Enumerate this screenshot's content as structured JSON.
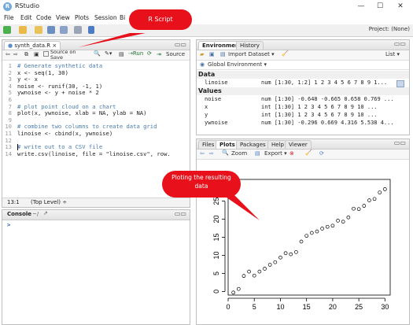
{
  "window": {
    "title": "RStudio",
    "minimize": "—",
    "maximize": "☐",
    "close": "✕"
  },
  "menu": [
    "File",
    "Edit",
    "Code",
    "View",
    "Plots",
    "Session",
    "Bi"
  ],
  "toolbar": {
    "project": "Project: (None)"
  },
  "editor": {
    "tab_label": "synth_data.R",
    "source_on_save": "Source on Save",
    "source_button": "Source",
    "lines": [
      {
        "n": "1",
        "text": "# Generate synthetic data",
        "kind": "comment"
      },
      {
        "n": "2",
        "text": "x <- seq(1, 30)",
        "kind": "code"
      },
      {
        "n": "3",
        "text": "y <- x",
        "kind": "code"
      },
      {
        "n": "4",
        "text": "noise <- runif(30, -1, 1)",
        "kind": "code"
      },
      {
        "n": "5",
        "text": "ywnoise <- y + noise * 2",
        "kind": "code"
      },
      {
        "n": "6",
        "text": "",
        "kind": "code"
      },
      {
        "n": "7",
        "text": "# plot point cloud on a chart",
        "kind": "comment"
      },
      {
        "n": "8",
        "text": "plot(x, ywnoise, xlab = NA, ylab = NA)",
        "kind": "code"
      },
      {
        "n": "9",
        "text": "",
        "kind": "code"
      },
      {
        "n": "10",
        "text": "# combine two columns to create data grid",
        "kind": "comment"
      },
      {
        "n": "11",
        "text": "linoise <- cbind(x, ywnoise)",
        "kind": "code"
      },
      {
        "n": "12",
        "text": "",
        "kind": "code"
      },
      {
        "n": "13",
        "text": "# write out to a CSV file",
        "kind": "comment"
      },
      {
        "n": "14",
        "text": "write.csv(linoise, file = \"linoise.csv\", row.",
        "kind": "code"
      }
    ],
    "status_pos": "13:1",
    "status_scope": "(Top Level) ÷"
  },
  "console": {
    "tab_label": "Console",
    "path": "~/",
    "prompt": ">"
  },
  "environment": {
    "tabs": [
      "Environment",
      "History"
    ],
    "import_label": "Import Dataset ▾",
    "list_label": "List ▾",
    "global_env": "Global Environment ▾",
    "data_header": "Data",
    "values_header": "Values",
    "data_rows": [
      {
        "name": "linoise",
        "value": "num [1:30, 1:2] 1 2 3 4 5 6 7 8 9 1..."
      }
    ],
    "value_rows": [
      {
        "name": "noise",
        "value": "num [1:30] -0.648 -0.665 0.658 0.769 ..."
      },
      {
        "name": "x",
        "value": "int [1:30] 1 2 3 4 5 6 7 8 9 10 ..."
      },
      {
        "name": "y",
        "value": "int [1:30] 1 2 3 4 5 6 7 8 9 10 ..."
      },
      {
        "name": "ywnoise",
        "value": "num [1:30] -0.296 0.669 4.316 5.538 4..."
      }
    ]
  },
  "files_pane": {
    "tabs": [
      "Files",
      "Plots",
      "Packages",
      "Help",
      "Viewer"
    ],
    "zoom_label": "Zoom",
    "export_label": "Export ▾"
  },
  "callouts": {
    "script": "R Script",
    "plot": "Ploting the resulting data"
  },
  "chart_data": {
    "type": "scatter",
    "title": "",
    "xlabel": "",
    "ylabel": "",
    "xlim": [
      0,
      31
    ],
    "ylim": [
      -1,
      31
    ],
    "xticks": [
      0,
      5,
      10,
      15,
      20,
      25,
      30
    ],
    "yticks": [
      0,
      5,
      10,
      15,
      20,
      25
    ],
    "x": [
      1,
      2,
      3,
      4,
      5,
      6,
      7,
      8,
      9,
      10,
      11,
      12,
      13,
      14,
      15,
      16,
      17,
      18,
      19,
      20,
      21,
      22,
      23,
      24,
      25,
      26,
      27,
      28,
      29,
      30
    ],
    "y": [
      -0.3,
      0.7,
      4.3,
      5.5,
      4.4,
      5.5,
      6.3,
      7.4,
      8.1,
      9.4,
      10.6,
      10.3,
      10.9,
      13.8,
      15.4,
      16.2,
      16.6,
      17.4,
      17.9,
      18.2,
      19.6,
      19.3,
      20.5,
      22.9,
      22.8,
      23.7,
      25.2,
      25.6,
      27.4,
      28.3
    ]
  }
}
